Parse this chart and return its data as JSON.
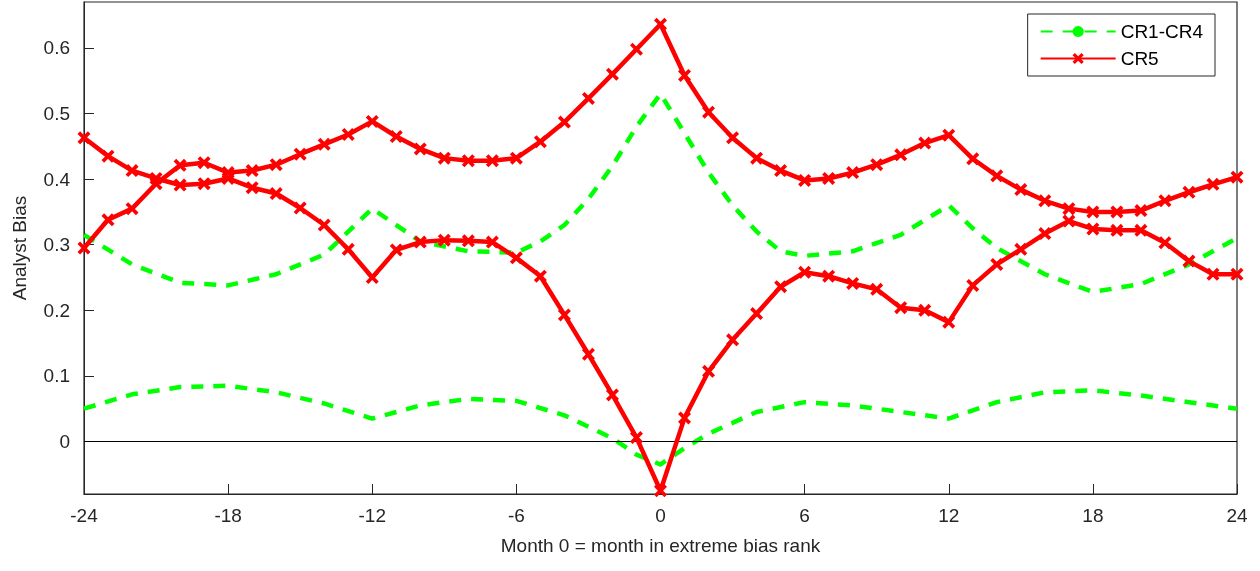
{
  "chart_data": {
    "type": "line",
    "xlabel": "Month 0 = month in extreme bias rank",
    "ylabel": "Analyst Bias",
    "x": [
      -24,
      -23,
      -22,
      -21,
      -20,
      -19,
      -18,
      -17,
      -16,
      -15,
      -14,
      -13,
      -12,
      -11,
      -10,
      -9,
      -8,
      -7,
      -6,
      -5,
      -4,
      -3,
      -2,
      -1,
      0,
      1,
      2,
      3,
      4,
      5,
      6,
      7,
      8,
      9,
      10,
      11,
      12,
      13,
      14,
      15,
      16,
      17,
      18,
      19,
      20,
      21,
      22,
      23,
      24
    ],
    "series": [
      {
        "name": "CR1-CR4",
        "color": "#00ff00",
        "marker": "none",
        "line_style": "dashed",
        "x": [
          -24,
          -22,
          -20,
          -18,
          -16,
          -14,
          -13,
          -12,
          -11,
          -10,
          -8,
          -6,
          -5,
          -4,
          -3,
          -2,
          -1,
          0,
          1,
          2,
          3,
          4,
          5,
          6,
          8,
          10,
          12,
          13,
          14,
          16,
          18,
          20,
          22,
          24
        ],
        "values": [
          0.315,
          0.27,
          0.242,
          0.238,
          0.255,
          0.285,
          0.32,
          0.355,
          0.33,
          0.305,
          0.29,
          0.288,
          0.305,
          0.33,
          0.37,
          0.42,
          0.48,
          0.53,
          0.47,
          0.41,
          0.36,
          0.32,
          0.29,
          0.283,
          0.29,
          0.315,
          0.36,
          0.325,
          0.295,
          0.255,
          0.228,
          0.24,
          0.27,
          0.31
        ]
      },
      {
        "color": "#00ff00",
        "marker": "none",
        "line_style": "dashed",
        "x": [
          -24,
          -22,
          -20,
          -18,
          -16,
          -14,
          -12,
          -10,
          -8,
          -6,
          -4,
          -2,
          -1,
          0,
          1,
          2,
          4,
          6,
          8,
          10,
          12,
          14,
          16,
          18,
          20,
          22,
          24
        ],
        "values": [
          0.05,
          0.072,
          0.083,
          0.085,
          0.075,
          0.058,
          0.035,
          0.055,
          0.065,
          0.062,
          0.04,
          0.005,
          -0.02,
          -0.035,
          -0.01,
          0.012,
          0.045,
          0.06,
          0.055,
          0.045,
          0.035,
          0.06,
          0.075,
          0.078,
          0.07,
          0.06,
          0.05
        ]
      },
      {
        "name": "CR5",
        "color": "#ff0000",
        "marker": "cross",
        "line_style": "solid",
        "values": [
          0.295,
          0.338,
          0.355,
          0.393,
          0.421,
          0.425,
          0.41,
          0.413,
          0.422,
          0.438,
          0.453,
          0.468,
          0.488,
          0.465,
          0.446,
          0.432,
          0.428,
          0.428,
          0.432,
          0.457,
          0.487,
          0.523,
          0.56,
          0.598,
          0.636,
          0.558,
          0.502,
          0.463,
          0.432,
          0.413,
          0.398,
          0.401,
          0.41,
          0.422,
          0.437,
          0.455,
          0.467,
          0.431,
          0.405,
          0.384,
          0.367,
          0.355,
          0.35,
          0.35,
          0.352,
          0.367,
          0.38,
          0.392,
          0.403
        ]
      },
      {
        "color": "#ff0000",
        "marker": "cross",
        "line_style": "solid",
        "values": [
          0.463,
          0.435,
          0.413,
          0.401,
          0.391,
          0.393,
          0.401,
          0.387,
          0.378,
          0.356,
          0.33,
          0.293,
          0.25,
          0.292,
          0.304,
          0.307,
          0.306,
          0.304,
          0.28,
          0.252,
          0.193,
          0.133,
          0.071,
          0.006,
          -0.075,
          0.036,
          0.107,
          0.155,
          0.195,
          0.236,
          0.258,
          0.252,
          0.241,
          0.232,
          0.204,
          0.2,
          0.182,
          0.238,
          0.27,
          0.293,
          0.317,
          0.336,
          0.324,
          0.322,
          0.322,
          0.303,
          0.275,
          0.255,
          0.255
        ]
      }
    ],
    "xlim": [
      -24,
      24
    ],
    "xticks": [
      -24,
      -18,
      -12,
      -6,
      0,
      6,
      12,
      18,
      24
    ],
    "ylim": [
      -0.08,
      0.67
    ],
    "yticks": [
      0,
      0.1,
      0.2,
      0.3,
      0.4,
      0.5,
      0.6
    ],
    "ref_lines": [
      {
        "axis": "y",
        "value": 0,
        "color": "#000000",
        "line_style": "solid"
      }
    ],
    "legend": "top right"
  }
}
